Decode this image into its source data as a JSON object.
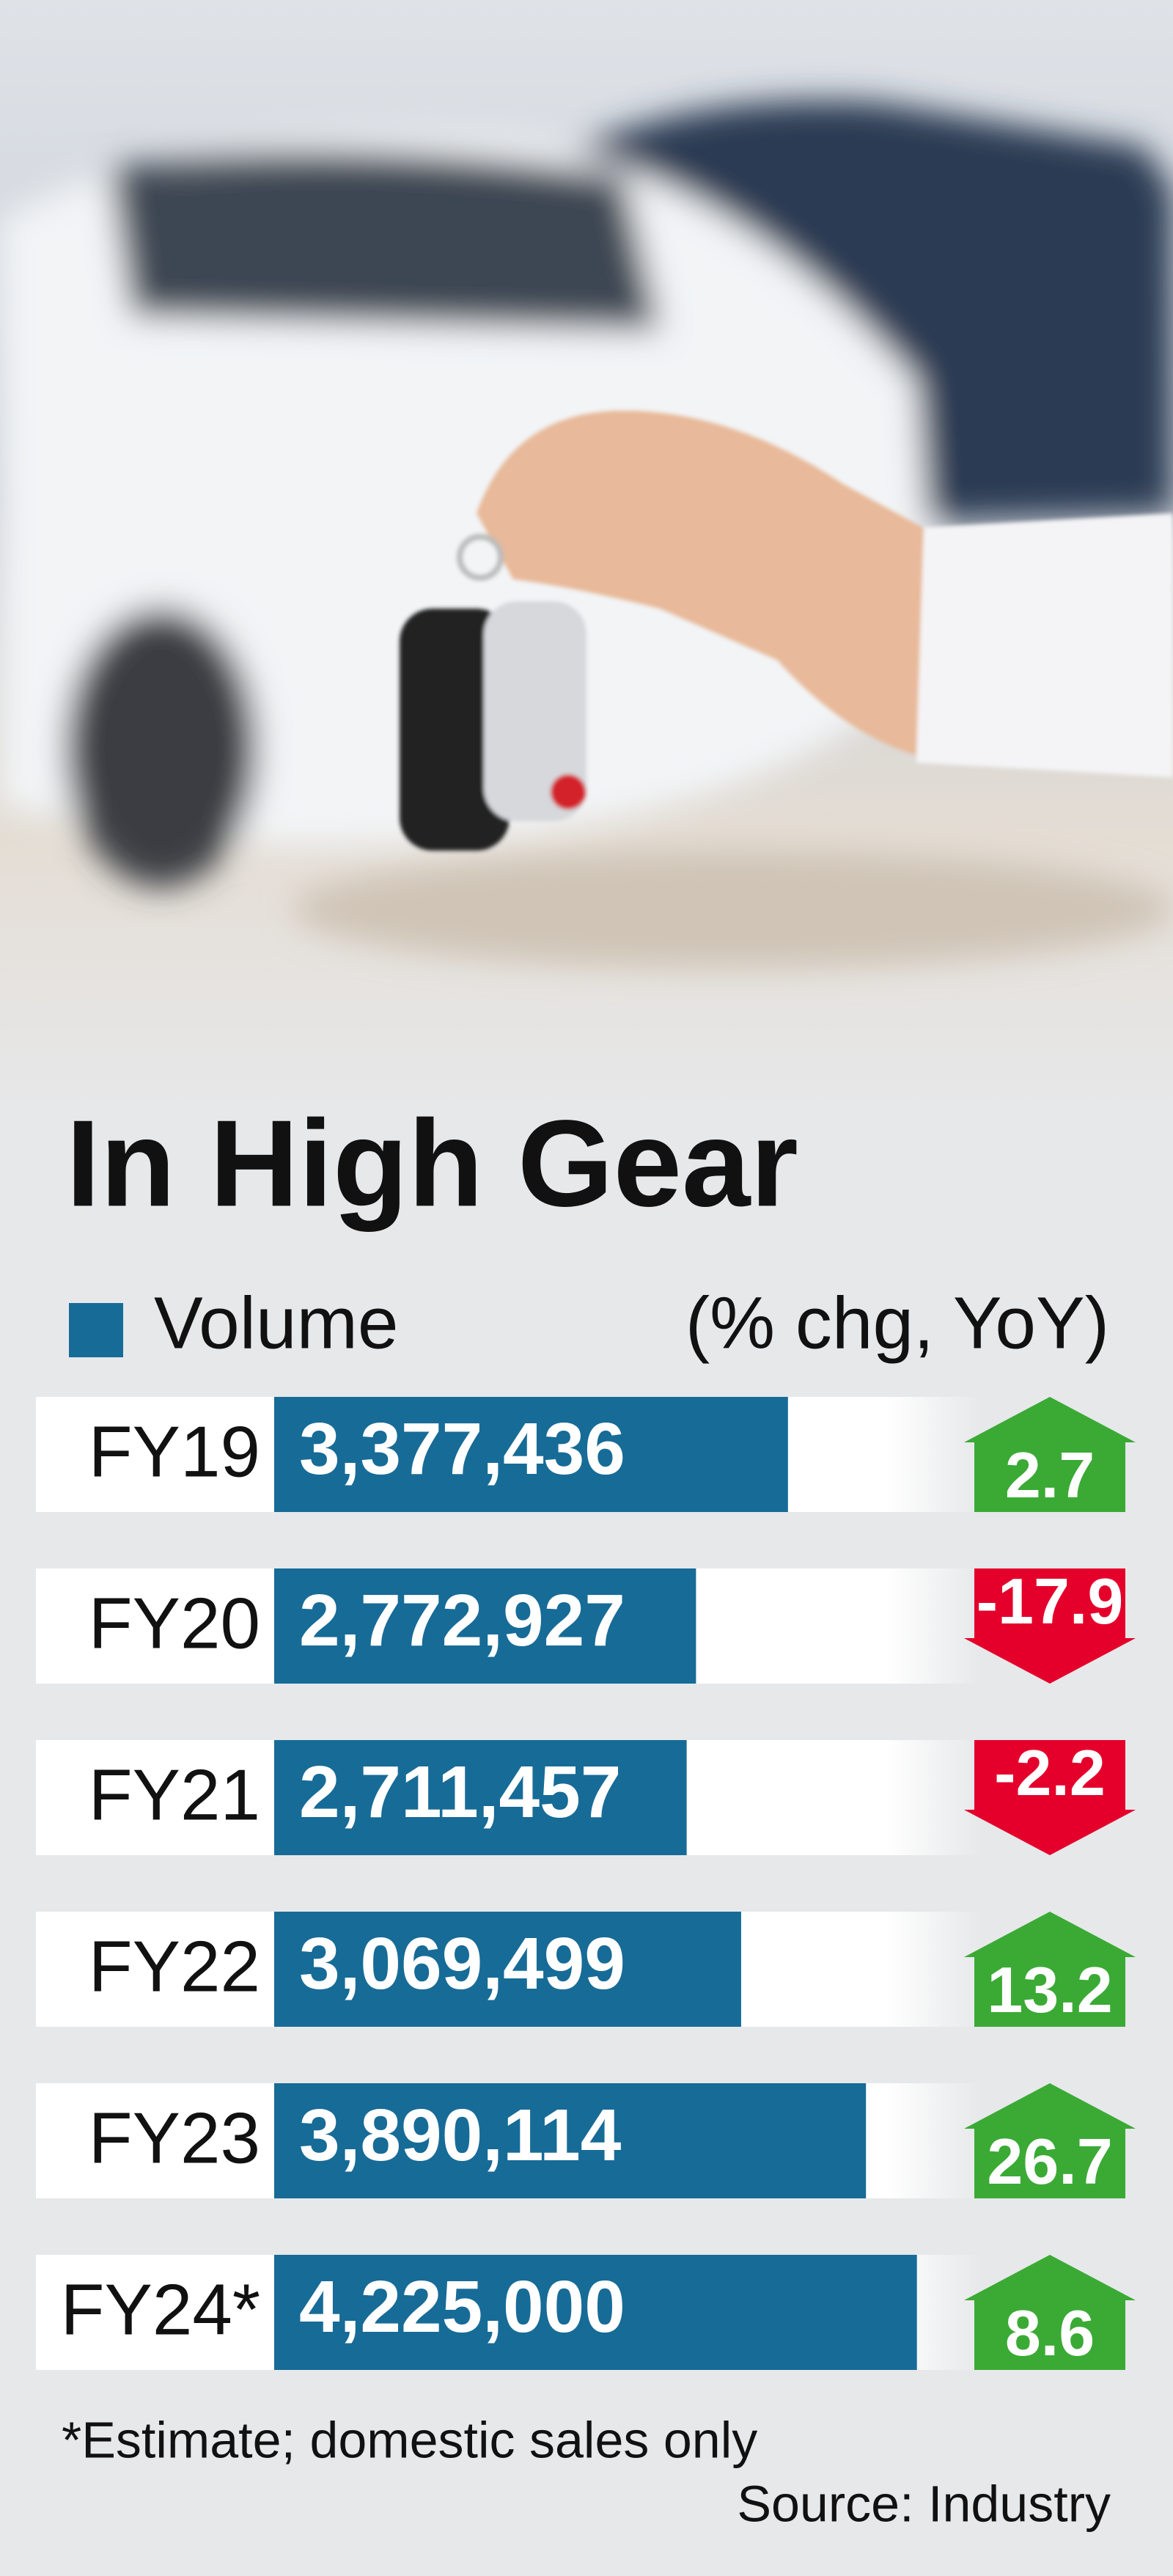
{
  "chart_data": {
    "type": "bar",
    "title": "In High Gear",
    "series": [
      {
        "name": "Volume",
        "color": "#176b97",
        "values": [
          3377436,
          2772927,
          2711457,
          3069499,
          3890114,
          4225000
        ],
        "value_labels": [
          "3,377,436",
          "2,772,927",
          "2,711,457",
          "3,069,499",
          "3,890,114",
          "4,225,000"
        ]
      }
    ],
    "categories": [
      "FY19",
      "FY20",
      "FY21",
      "FY22",
      "FY23",
      "FY24*"
    ],
    "change_label": "(% chg, YoY)",
    "changes": [
      2.7,
      -17.9,
      -2.2,
      13.2,
      26.7,
      8.6
    ],
    "up_color": "#3aaa35",
    "down_color": "#e4002b",
    "footnote": "*Estimate; domestic sales only",
    "source": "Source: Industry"
  }
}
